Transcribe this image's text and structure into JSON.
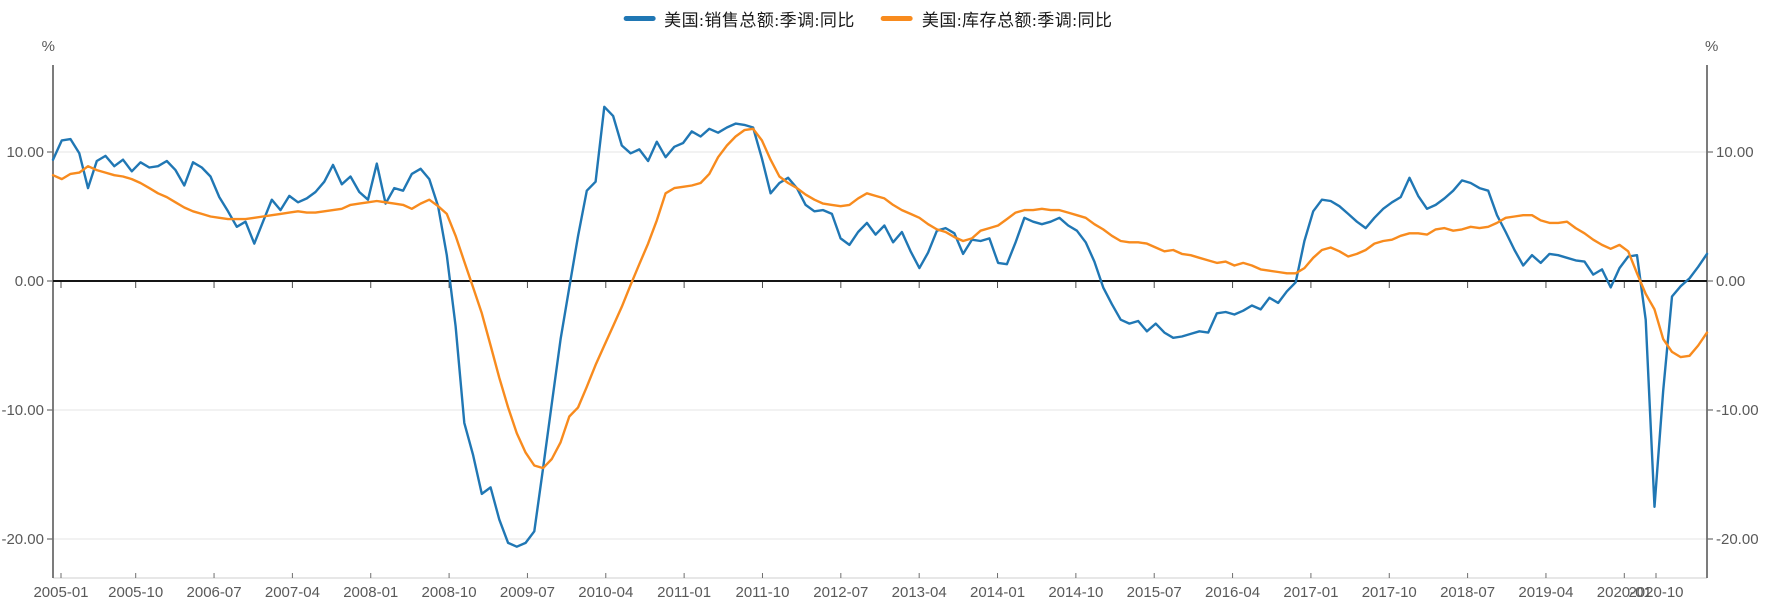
{
  "chart_data": {
    "type": "line",
    "title": "",
    "legend_position": "top",
    "unit_left": "%",
    "unit_right": "%",
    "x_start": "2005-01",
    "x_end": "2020-10",
    "frequency": "monthly",
    "x_tick_labels": [
      "2005-01",
      "2005-10",
      "2006-07",
      "2007-04",
      "2008-01",
      "2008-10",
      "2009-07",
      "2010-04",
      "2011-01",
      "2011-10",
      "2012-07",
      "2013-04",
      "2014-01",
      "2014-10",
      "2015-07",
      "2016-04",
      "2017-01",
      "2017-10",
      "2018-07",
      "2019-04",
      "2020-01",
      "2020-10"
    ],
    "y_ticks": [
      {
        "value": 10,
        "label": "10.00"
      },
      {
        "value": 0,
        "label": "0.00"
      },
      {
        "value": -10,
        "label": "-10.00"
      },
      {
        "value": -20,
        "label": "-20.00"
      }
    ],
    "ylim": [
      -23.0,
      16.7
    ],
    "grid": true,
    "colors": {
      "grid_line": "#e4e4e4",
      "zero_line": "#151515",
      "axis_line": "#6e6e6e",
      "bottom_axis_line": "#cfcfcf",
      "tick": "#4d4d4d",
      "axis_text": "#595959",
      "legend_text": "#1a1a1a",
      "background": "#ffffff"
    },
    "series": [
      {
        "name": "美国:销售总额:季调:同比",
        "color": "#2077b4",
        "values": [
          9.4,
          10.9,
          11.0,
          9.9,
          7.2,
          9.3,
          9.7,
          8.9,
          9.4,
          8.5,
          9.2,
          8.8,
          8.9,
          9.3,
          8.6,
          7.4,
          9.2,
          8.8,
          8.1,
          6.5,
          5.4,
          4.2,
          4.6,
          2.9,
          4.6,
          6.3,
          5.5,
          6.6,
          6.1,
          6.4,
          6.9,
          7.7,
          9.0,
          7.5,
          8.1,
          6.9,
          6.3,
          9.1,
          6.0,
          7.2,
          7.0,
          8.3,
          8.7,
          7.9,
          5.8,
          2.0,
          -3.5,
          -11.0,
          -13.5,
          -16.5,
          -16.0,
          -18.5,
          -20.3,
          -20.6,
          -20.3,
          -19.4,
          -14.5,
          -9.5,
          -4.5,
          -0.5,
          3.5,
          7.0,
          7.7,
          13.5,
          12.8,
          10.5,
          9.9,
          10.2,
          9.3,
          10.8,
          9.6,
          10.4,
          10.7,
          11.6,
          11.2,
          11.8,
          11.5,
          11.9,
          12.2,
          12.1,
          11.9,
          9.5,
          6.8,
          7.6,
          8.0,
          7.2,
          5.9,
          5.4,
          5.5,
          5.2,
          3.3,
          2.8,
          3.8,
          4.5,
          3.6,
          4.3,
          3.0,
          3.8,
          2.3,
          1.0,
          2.2,
          3.9,
          4.1,
          3.7,
          2.1,
          3.2,
          3.1,
          3.3,
          1.4,
          1.3,
          3.0,
          4.9,
          4.6,
          4.4,
          4.6,
          4.9,
          4.3,
          3.9,
          3.0,
          1.5,
          -0.5,
          -1.8,
          -3.0,
          -3.3,
          -3.1,
          -3.9,
          -3.3,
          -4.0,
          -4.4,
          -4.3,
          -4.1,
          -3.9,
          -4.0,
          -2.5,
          -2.4,
          -2.6,
          -2.3,
          -1.9,
          -2.2,
          -1.3,
          -1.7,
          -0.8,
          -0.1,
          3.1,
          5.4,
          6.3,
          6.2,
          5.8,
          5.2,
          4.6,
          4.1,
          4.9,
          5.6,
          6.1,
          6.5,
          8.0,
          6.6,
          5.6,
          5.9,
          6.4,
          7.0,
          7.8,
          7.6,
          7.2,
          7.0,
          5.1,
          3.8,
          2.4,
          1.2,
          2.0,
          1.4,
          2.1,
          2.0,
          1.8,
          1.6,
          1.5,
          0.5,
          0.9,
          -0.5,
          1.0,
          1.9,
          2.0,
          -3.0,
          -17.5,
          -8.5,
          -1.2,
          -0.4,
          0.2,
          1.1,
          2.1
        ]
      },
      {
        "name": "美国:库存总额:季调:同比",
        "color": "#f88b1e",
        "values": [
          8.2,
          7.9,
          8.3,
          8.4,
          8.9,
          8.6,
          8.4,
          8.2,
          8.1,
          7.9,
          7.6,
          7.2,
          6.8,
          6.5,
          6.1,
          5.7,
          5.4,
          5.2,
          5.0,
          4.9,
          4.8,
          4.8,
          4.8,
          4.9,
          5.0,
          5.1,
          5.2,
          5.3,
          5.4,
          5.3,
          5.3,
          5.4,
          5.5,
          5.6,
          5.9,
          6.0,
          6.1,
          6.2,
          6.1,
          6.0,
          5.9,
          5.6,
          6.0,
          6.3,
          5.8,
          5.2,
          3.5,
          1.5,
          -0.5,
          -2.5,
          -5.0,
          -7.5,
          -9.8,
          -11.8,
          -13.3,
          -14.3,
          -14.5,
          -13.8,
          -12.5,
          -10.5,
          -9.8,
          -8.2,
          -6.5,
          -5.0,
          -3.5,
          -2.0,
          -0.3,
          1.3,
          2.9,
          4.7,
          6.8,
          7.2,
          7.3,
          7.4,
          7.6,
          8.3,
          9.6,
          10.5,
          11.2,
          11.7,
          11.8,
          10.9,
          9.4,
          8.1,
          7.6,
          7.2,
          6.7,
          6.3,
          6.0,
          5.9,
          5.8,
          5.9,
          6.4,
          6.8,
          6.6,
          6.4,
          5.9,
          5.5,
          5.2,
          4.9,
          4.4,
          4.0,
          3.8,
          3.4,
          3.1,
          3.3,
          3.9,
          4.1,
          4.3,
          4.8,
          5.3,
          5.5,
          5.5,
          5.6,
          5.5,
          5.5,
          5.3,
          5.1,
          4.9,
          4.4,
          4.0,
          3.5,
          3.1,
          3.0,
          3.0,
          2.9,
          2.6,
          2.3,
          2.4,
          2.1,
          2.0,
          1.8,
          1.6,
          1.4,
          1.5,
          1.2,
          1.4,
          1.2,
          0.9,
          0.8,
          0.7,
          0.6,
          0.6,
          1.0,
          1.8,
          2.4,
          2.6,
          2.3,
          1.9,
          2.1,
          2.4,
          2.9,
          3.1,
          3.2,
          3.5,
          3.7,
          3.7,
          3.6,
          4.0,
          4.1,
          3.9,
          4.0,
          4.2,
          4.1,
          4.2,
          4.5,
          4.9,
          5.0,
          5.1,
          5.1,
          4.7,
          4.5,
          4.5,
          4.6,
          4.1,
          3.7,
          3.2,
          2.8,
          2.5,
          2.8,
          2.3,
          0.6,
          -1.0,
          -2.2,
          -4.5,
          -5.5,
          -5.9,
          -5.8,
          -5.0,
          -4.0
        ]
      }
    ]
  }
}
